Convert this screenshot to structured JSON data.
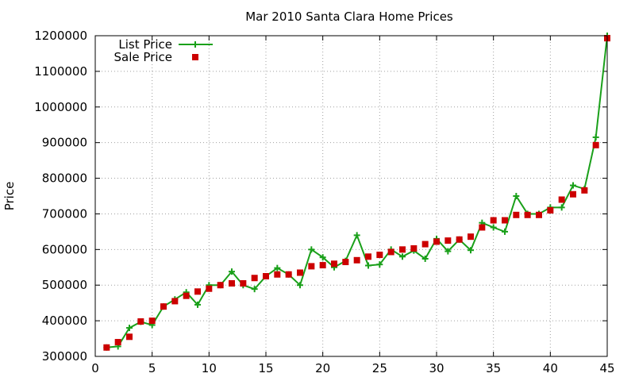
{
  "chart_data": {
    "type": "line",
    "title": "Mar 2010 Santa Clara Home Prices",
    "xlabel": "",
    "ylabel": "Price",
    "xlim": [
      0,
      45
    ],
    "ylim": [
      300000,
      1200000
    ],
    "xticks": [
      0,
      5,
      10,
      15,
      20,
      25,
      30,
      35,
      40,
      45
    ],
    "yticks": [
      300000,
      400000,
      500000,
      600000,
      700000,
      800000,
      900000,
      1000000,
      1100000,
      1200000
    ],
    "grid": true,
    "legend_position": "top-left",
    "series": [
      {
        "name": "List Price",
        "style": "linespoints",
        "color": "#1aa01a",
        "x": [
          1,
          2,
          3,
          4,
          5,
          6,
          7,
          8,
          9,
          10,
          11,
          12,
          13,
          14,
          15,
          16,
          17,
          18,
          19,
          20,
          21,
          22,
          23,
          24,
          25,
          26,
          27,
          28,
          29,
          30,
          31,
          32,
          33,
          34,
          35,
          36,
          37,
          38,
          39,
          40,
          41,
          42,
          43,
          44,
          45
        ],
        "y": [
          325000,
          328000,
          380000,
          397000,
          388000,
          440000,
          460000,
          480000,
          445000,
          500000,
          500000,
          538000,
          500000,
          489000,
          525000,
          548000,
          530000,
          500000,
          600000,
          578000,
          550000,
          568000,
          640000,
          555000,
          558000,
          600000,
          580000,
          597000,
          574000,
          630000,
          595000,
          628000,
          598000,
          675000,
          662000,
          650000,
          750000,
          700000,
          700000,
          718000,
          718000,
          780000,
          770000,
          915000,
          1200000
        ]
      },
      {
        "name": "Sale Price",
        "style": "points",
        "color": "#cc0000",
        "x": [
          1,
          2,
          3,
          4,
          5,
          6,
          7,
          8,
          9,
          10,
          11,
          12,
          13,
          14,
          15,
          16,
          17,
          18,
          19,
          20,
          21,
          22,
          23,
          24,
          25,
          26,
          27,
          28,
          29,
          30,
          31,
          32,
          33,
          34,
          35,
          36,
          37,
          38,
          39,
          40,
          41,
          42,
          43,
          44,
          45
        ],
        "y": [
          325000,
          340000,
          355000,
          398000,
          400000,
          440000,
          455000,
          470000,
          482000,
          490000,
          500000,
          505000,
          505000,
          520000,
          525000,
          530000,
          530000,
          535000,
          553000,
          556000,
          560000,
          565000,
          570000,
          580000,
          585000,
          593000,
          600000,
          603000,
          615000,
          622000,
          625000,
          628000,
          636000,
          662000,
          682000,
          682000,
          697000,
          697000,
          697000,
          710000,
          740000,
          755000,
          766000,
          893000,
          1193000
        ]
      }
    ]
  }
}
